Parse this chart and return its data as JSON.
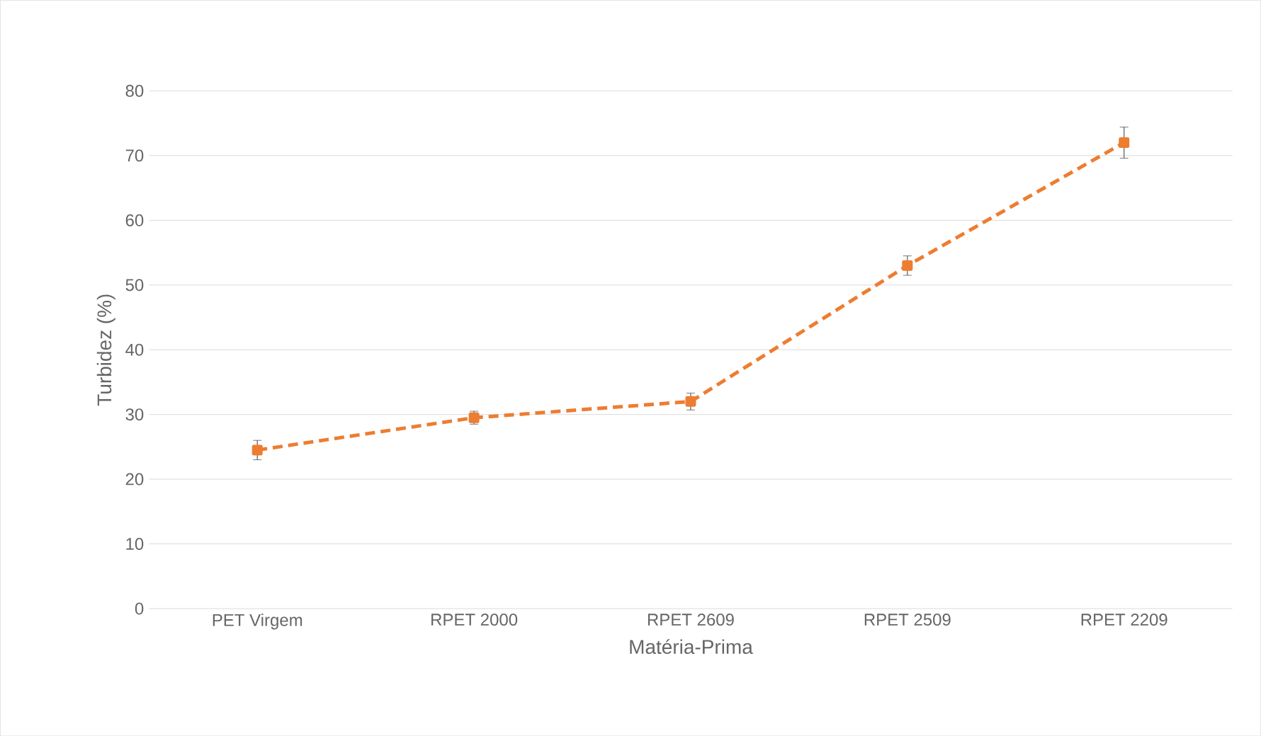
{
  "chart_data": {
    "type": "line",
    "xlabel": "Matéria-Prima",
    "ylabel": "Turbidez (%)",
    "categories": [
      "PET Virgem",
      "RPET 2000",
      "RPET 2609",
      "RPET 2509",
      "RPET 2209"
    ],
    "values": [
      24.5,
      29.5,
      32,
      53,
      72
    ],
    "errors": [
      1.5,
      1,
      1.3,
      1.5,
      2.4
    ],
    "color": "#ed7d31",
    "marker": "square",
    "line_style": "dashed",
    "grid": "y",
    "ylim": [
      0,
      80
    ],
    "yticks": [
      0,
      10,
      20,
      30,
      40,
      50,
      60,
      70,
      80
    ]
  }
}
